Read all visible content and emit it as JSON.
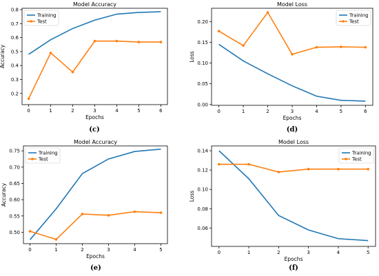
{
  "colors": {
    "training": "#1f77b4",
    "test": "#ff7f0e",
    "axis": "#000000"
  },
  "chart_data": [
    {
      "type": "line",
      "title": "Model Accuracy",
      "xlabel": "Epochs",
      "ylabel": "Accuracy",
      "caption": "(c)",
      "x": [
        0,
        1,
        2,
        3,
        4,
        5,
        6
      ],
      "xlim": [
        -0.3,
        6.3
      ],
      "ylim": [
        0.12,
        0.81
      ],
      "xticks": [
        "0",
        "1",
        "2",
        "3",
        "4",
        "5",
        "6"
      ],
      "yticks": [
        "0.2",
        "0.3",
        "0.4",
        "0.5",
        "0.6",
        "0.7",
        "0.8"
      ],
      "ytick_values": [
        0.2,
        0.3,
        0.4,
        0.5,
        0.6,
        0.7,
        0.8
      ],
      "legend": "top-left",
      "grid": false,
      "series": [
        {
          "name": "Training",
          "marker": false,
          "values": [
            0.48,
            0.585,
            0.665,
            0.725,
            0.768,
            0.78,
            0.785
          ]
        },
        {
          "name": "Test",
          "marker": true,
          "values": [
            0.163,
            0.49,
            0.353,
            0.575,
            0.575,
            0.568,
            0.568
          ]
        }
      ]
    },
    {
      "type": "line",
      "title": "Model Loss",
      "xlabel": "Epochs",
      "ylabel": "Loss",
      "caption": "(d)",
      "x": [
        0,
        1,
        2,
        3,
        4,
        5,
        6
      ],
      "xlim": [
        -0.3,
        6.3
      ],
      "ylim": [
        -0.002,
        0.232
      ],
      "xticks": [
        "0",
        "1",
        "2",
        "3",
        "4",
        "5",
        "6"
      ],
      "yticks": [
        "0.00",
        "0.05",
        "0.10",
        "0.15",
        "0.20"
      ],
      "ytick_values": [
        0,
        0.05,
        0.1,
        0.15,
        0.2
      ],
      "legend": "top-right",
      "grid": false,
      "series": [
        {
          "name": "Training",
          "marker": false,
          "values": [
            0.145,
            0.105,
            0.074,
            0.045,
            0.02,
            0.01,
            0.008
          ]
        },
        {
          "name": "Test",
          "marker": true,
          "values": [
            0.177,
            0.142,
            0.222,
            0.121,
            0.138,
            0.139,
            0.138
          ]
        }
      ]
    },
    {
      "type": "line",
      "title": "Model Accuracy",
      "xlabel": "Epochs",
      "ylabel": "Accuracy",
      "caption": "(e)",
      "x": [
        0,
        1,
        2,
        3,
        4,
        5
      ],
      "xlim": [
        -0.25,
        5.25
      ],
      "ylim": [
        0.465,
        0.765
      ],
      "xticks": [
        "0",
        "1",
        "2",
        "3",
        "4",
        "5"
      ],
      "yticks": [
        "0.50",
        "0.55",
        "0.60",
        "0.65",
        "0.70",
        "0.75"
      ],
      "ytick_values": [
        0.5,
        0.55,
        0.6,
        0.65,
        0.7,
        0.75
      ],
      "legend": "top-left",
      "grid": false,
      "series": [
        {
          "name": "Training",
          "marker": false,
          "values": [
            0.477,
            0.572,
            0.68,
            0.725,
            0.748,
            0.755
          ]
        },
        {
          "name": "Test",
          "marker": true,
          "values": [
            0.503,
            0.478,
            0.556,
            0.552,
            0.563,
            0.56
          ]
        }
      ]
    },
    {
      "type": "line",
      "title": "Model Loss",
      "xlabel": "Epochs",
      "ylabel": "Loss",
      "caption": "(f)",
      "x": [
        0,
        1,
        2,
        3,
        4,
        5
      ],
      "xlim": [
        -0.25,
        5.25
      ],
      "ylim": [
        0.041,
        0.145
      ],
      "xticks": [
        "0",
        "1",
        "2",
        "3",
        "4",
        "5"
      ],
      "yticks": [
        "0.06",
        "0.08",
        "0.10",
        "0.12",
        "0.14"
      ],
      "ytick_values": [
        0.06,
        0.08,
        0.1,
        0.12,
        0.14
      ],
      "legend": "top-right",
      "grid": false,
      "series": [
        {
          "name": "Training",
          "marker": false,
          "values": [
            0.14,
            0.111,
            0.073,
            0.058,
            0.049,
            0.047
          ]
        },
        {
          "name": "Test",
          "marker": true,
          "values": [
            0.126,
            0.126,
            0.118,
            0.121,
            0.121,
            0.121
          ]
        }
      ]
    }
  ]
}
